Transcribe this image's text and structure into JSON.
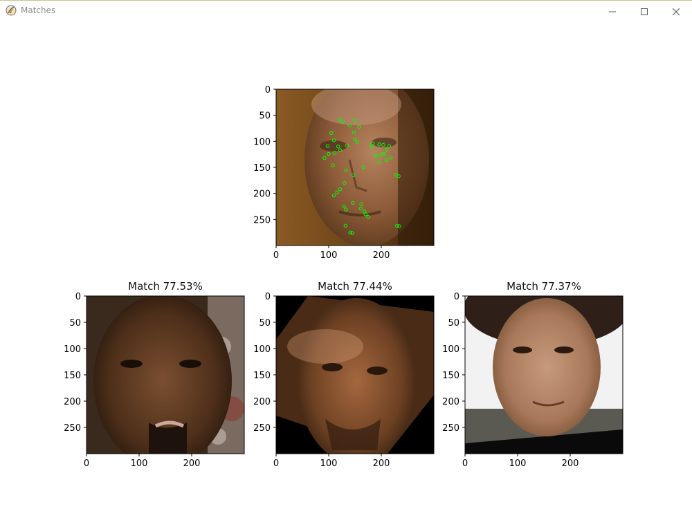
{
  "window": {
    "title": "Matches",
    "app_icon": "python-feather-icon",
    "controls": [
      "minimize-icon",
      "maximize-icon",
      "close-icon"
    ]
  },
  "subplots": [
    {
      "id": "query",
      "title": "",
      "image": "query-face-with-green-keypoints",
      "x_ticks": [
        "0",
        "100",
        "200"
      ],
      "y_ticks": [
        "0",
        "50",
        "100",
        "150",
        "200",
        "250"
      ]
    },
    {
      "id": "match-1",
      "title": "Match 77.53%",
      "image": "match-face-1",
      "x_ticks": [
        "0",
        "100",
        "200"
      ],
      "y_ticks": [
        "0",
        "50",
        "100",
        "150",
        "200",
        "250"
      ]
    },
    {
      "id": "match-2",
      "title": "Match 77.44%",
      "image": "match-face-2",
      "x_ticks": [
        "0",
        "100",
        "200"
      ],
      "y_ticks": [
        "0",
        "50",
        "100",
        "150",
        "200",
        "250"
      ]
    },
    {
      "id": "match-3",
      "title": "Match 77.37%",
      "image": "match-face-3",
      "x_ticks": [
        "0",
        "100",
        "200"
      ],
      "y_ticks": [
        "0",
        "50",
        "100",
        "150",
        "200",
        "250"
      ]
    }
  ],
  "keypoints": [
    [
      105,
      84
    ],
    [
      110,
      98
    ],
    [
      120,
      58
    ],
    [
      127,
      62
    ],
    [
      140,
      70
    ],
    [
      149,
      60
    ],
    [
      158,
      72
    ],
    [
      148,
      83
    ],
    [
      150,
      96
    ],
    [
      154,
      101
    ],
    [
      135,
      108
    ],
    [
      118,
      110
    ],
    [
      122,
      117
    ],
    [
      111,
      122
    ],
    [
      98,
      109
    ],
    [
      100,
      124
    ],
    [
      92,
      132
    ],
    [
      108,
      146
    ],
    [
      133,
      156
    ],
    [
      147,
      165
    ],
    [
      130,
      180
    ],
    [
      122,
      192
    ],
    [
      116,
      198
    ],
    [
      110,
      204
    ],
    [
      129,
      225
    ],
    [
      133,
      231
    ],
    [
      146,
      218
    ],
    [
      162,
      221
    ],
    [
      161,
      229
    ],
    [
      168,
      235
    ],
    [
      170,
      240
    ],
    [
      175,
      245
    ],
    [
      132,
      262
    ],
    [
      141,
      275
    ],
    [
      145,
      276
    ],
    [
      182,
      110
    ],
    [
      196,
      106
    ],
    [
      204,
      107
    ],
    [
      210,
      116
    ],
    [
      205,
      124
    ],
    [
      190,
      128
    ],
    [
      196,
      140
    ],
    [
      210,
      136
    ],
    [
      228,
      164
    ],
    [
      233,
      167
    ],
    [
      218,
      131
    ],
    [
      215,
      109
    ],
    [
      166,
      150
    ],
    [
      230,
      262
    ],
    [
      234,
      263
    ],
    [
      184,
      104
    ],
    [
      199,
      126
    ]
  ],
  "colors": {
    "keypoint": "#00ff00",
    "axis": "#000000"
  }
}
